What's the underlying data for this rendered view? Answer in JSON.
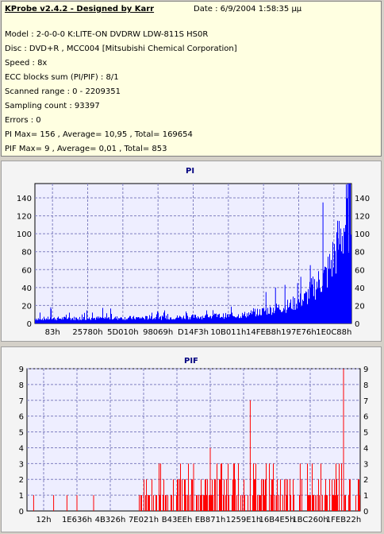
{
  "header": {
    "title": "KProbe v2.4.2 - Designed by Karr",
    "date": "Date : 6/9/2004 1:58:35 μμ"
  },
  "info_lines": [
    "Model : 2-0-0-0 K:LITE-ON DVDRW LDW-811S   HS0R",
    "Disc : DVD+R , MCC004 [Mitsubishi Chemical Corporation]",
    "Speed : 8x",
    "ECC blocks sum (PI/PIF) : 8/1",
    "Scanned range : 0 - 2209351",
    "Sampling count : 93397",
    "Errors : 0",
    "PI Max= 156 , Average= 10,95 , Total= 169654",
    "PIF Max= 9 , Average= 0,01 , Total= 853"
  ],
  "colors": {
    "pi": "#0000ff",
    "pif": "#ff0000",
    "plot_bg": "#eeeeff",
    "grid": "#8080c0"
  },
  "chart_data": [
    {
      "type": "bar",
      "title": "PI",
      "ylim": [
        0,
        156
      ],
      "yticks": [
        0,
        20,
        40,
        60,
        80,
        100,
        120,
        140
      ],
      "xtick_labels": [
        "83h",
        "25780h",
        "5D010h",
        "98069h",
        "D14F3h",
        "10B011h",
        "14FEB8h",
        "197E76h",
        "1E0C88h"
      ],
      "series": [
        {
          "color": "#0000ff"
        }
      ],
      "baseline_max": 8,
      "profile_knots": [
        [
          0,
          6
        ],
        [
          0.4,
          7
        ],
        [
          0.65,
          10
        ],
        [
          0.72,
          15
        ],
        [
          0.8,
          22
        ],
        [
          0.85,
          30
        ],
        [
          0.88,
          45
        ],
        [
          0.92,
          60
        ],
        [
          0.95,
          90
        ],
        [
          0.98,
          125
        ],
        [
          1,
          150
        ]
      ],
      "spikes": [
        [
          0.05,
          18
        ],
        [
          0.39,
          12
        ],
        [
          0.73,
          35
        ],
        [
          0.76,
          40
        ],
        [
          0.79,
          43
        ],
        [
          0.83,
          45
        ],
        [
          0.84,
          52
        ],
        [
          0.87,
          65
        ],
        [
          0.91,
          135
        ],
        [
          0.96,
          95
        ],
        [
          0.99,
          156
        ]
      ]
    },
    {
      "type": "bar",
      "title": "PIF",
      "ylim": [
        0,
        9
      ],
      "yticks": [
        0,
        1,
        2,
        3,
        4,
        5,
        6,
        7,
        8,
        9
      ],
      "xtick_labels": [
        "12h",
        "1E636h",
        "4B326h",
        "7E021h",
        "B43EEh",
        "EB871h",
        "1259E1h",
        "16B4E5h",
        "1BC260h",
        "1FEB22h"
      ],
      "series": [
        {
          "color": "#ff0000"
        }
      ],
      "dense_range": [
        0.33,
        1.0
      ],
      "spikes": [
        [
          0.02,
          1
        ],
        [
          0.08,
          1
        ],
        [
          0.12,
          1
        ],
        [
          0.15,
          1
        ],
        [
          0.2,
          1
        ],
        [
          0.5,
          3
        ],
        [
          0.55,
          4
        ],
        [
          0.62,
          3
        ],
        [
          0.67,
          7
        ],
        [
          0.82,
          3
        ],
        [
          0.95,
          9
        ],
        [
          0.97,
          2
        ]
      ]
    }
  ]
}
